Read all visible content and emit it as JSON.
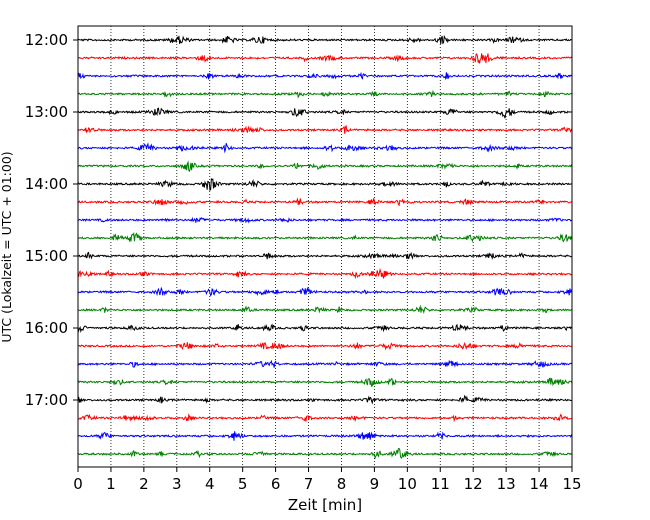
{
  "chart_data": {
    "type": "line",
    "title": "",
    "xlabel": "Zeit  [min]",
    "ylabel": "UTC (Lokalzeit = UTC + 01:00)",
    "xlim": [
      0,
      15
    ],
    "x_ticks": [
      "0",
      "1",
      "2",
      "3",
      "4",
      "5",
      "6",
      "7",
      "8",
      "9",
      "10",
      "11",
      "12",
      "13",
      "14",
      "15"
    ],
    "y_ticks": [
      "12:00",
      "13:00",
      "14:00",
      "15:00",
      "16:00",
      "17:00"
    ],
    "grid": "vertical dotted",
    "trace_minutes": 15,
    "trace_start": "12:00",
    "trace_end": "17:45",
    "trace_colors": [
      "#000000",
      "#ff0000",
      "#0000ff",
      "#008000"
    ]
  }
}
